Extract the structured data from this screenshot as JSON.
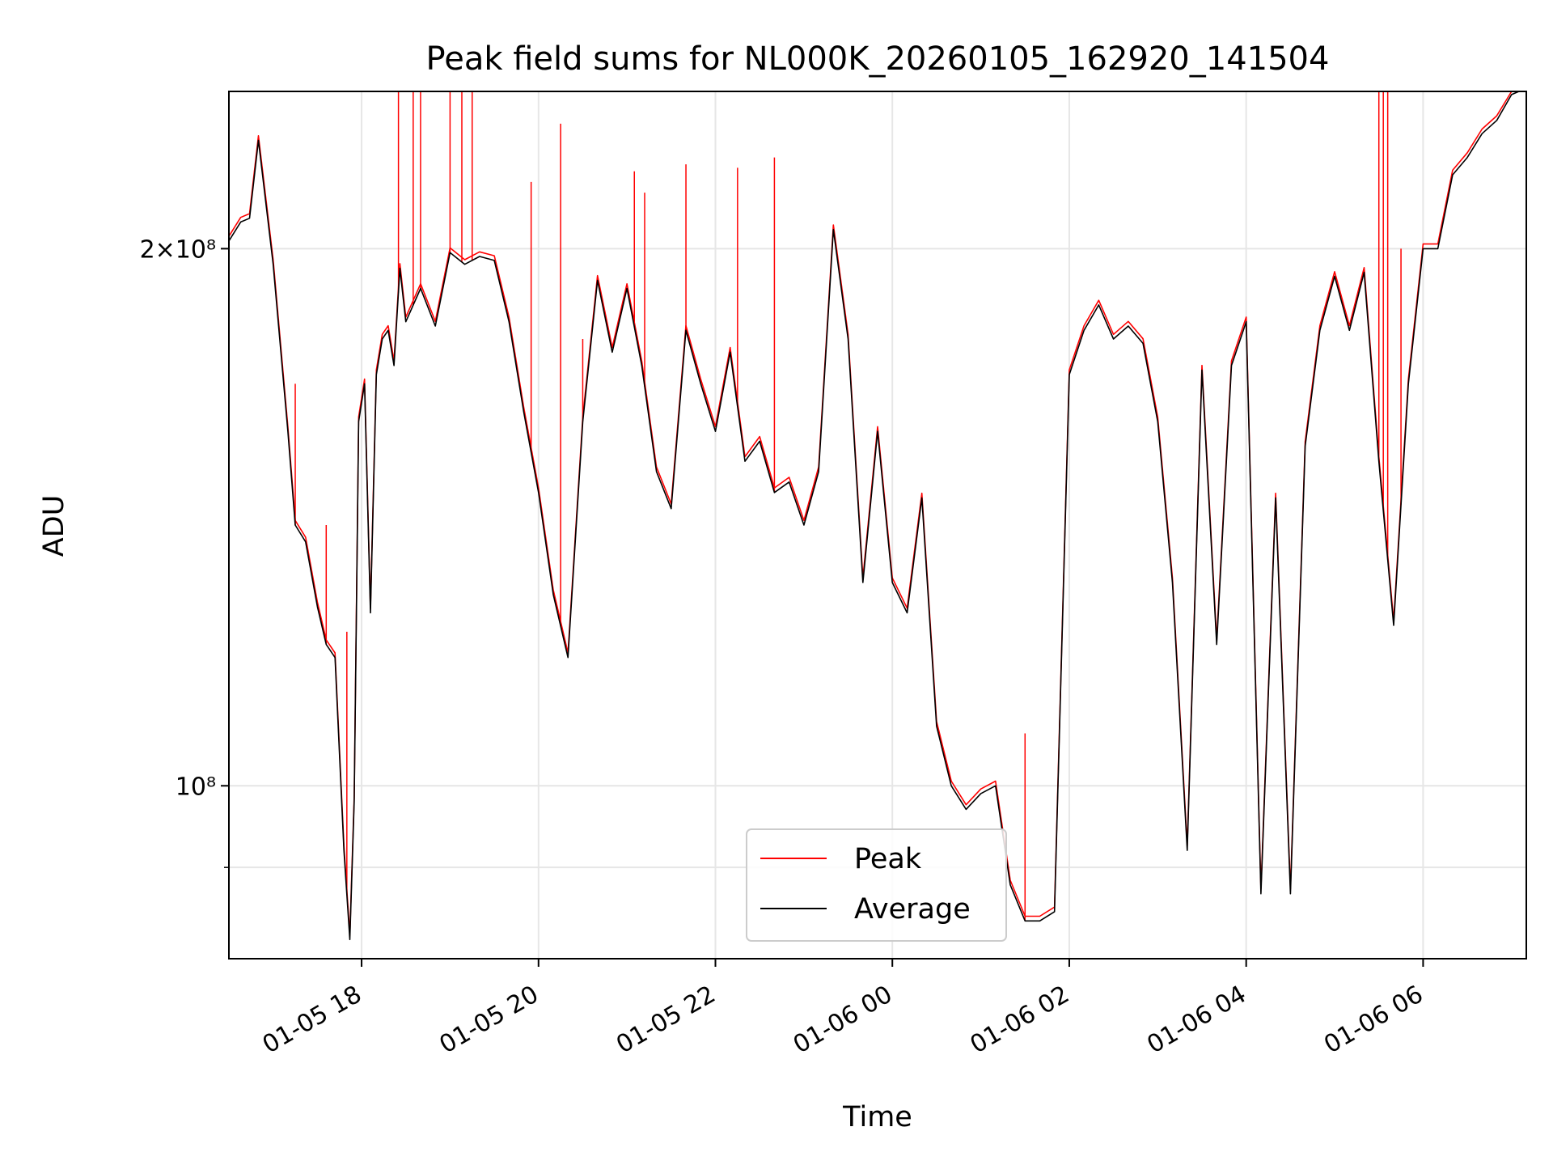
{
  "chart_data": {
    "type": "line",
    "title": "Peak field sums for NL000K_20260105_162920_141504",
    "xlabel": "Time",
    "ylabel": "ADU",
    "y_scale": "log",
    "ylim": [
      80000000,
      245000000
    ],
    "xlim": [
      "2026-01-05T16:30",
      "2026-01-06T07:10"
    ],
    "grid": true,
    "legend_position": "lower-center",
    "x_ticks": [
      {
        "t": "2026-01-05T18:00",
        "label": "01-05 18"
      },
      {
        "t": "2026-01-05T20:00",
        "label": "01-05 20"
      },
      {
        "t": "2026-01-05T22:00",
        "label": "01-05 22"
      },
      {
        "t": "2026-01-06T00:00",
        "label": "01-06 00"
      },
      {
        "t": "2026-01-06T02:00",
        "label": "01-06 02"
      },
      {
        "t": "2026-01-06T04:00",
        "label": "01-06 04"
      },
      {
        "t": "2026-01-06T06:00",
        "label": "01-06 06"
      }
    ],
    "y_ticks": [
      {
        "value": 200000000,
        "label": "2×10⁸"
      },
      {
        "value": 100000000,
        "label": "10⁸"
      }
    ],
    "y_minor_ticks": [
      90000000
    ],
    "colors": {
      "peak": "#ff0000",
      "average": "#000000"
    },
    "series": [
      {
        "name": "Average",
        "x": [
          "2026-01-05T16:30",
          "2026-01-05T16:38",
          "2026-01-05T16:44",
          "2026-01-05T16:50",
          "2026-01-05T17:00",
          "2026-01-05T17:10",
          "2026-01-05T17:15",
          "2026-01-05T17:22",
          "2026-01-05T17:30",
          "2026-01-05T17:36",
          "2026-01-05T17:42",
          "2026-01-05T17:48",
          "2026-01-05T17:52",
          "2026-01-05T17:55",
          "2026-01-05T17:58",
          "2026-01-05T18:02",
          "2026-01-05T18:06",
          "2026-01-05T18:10",
          "2026-01-05T18:14",
          "2026-01-05T18:18",
          "2026-01-05T18:22",
          "2026-01-05T18:26",
          "2026-01-05T18:30",
          "2026-01-05T18:40",
          "2026-01-05T18:50",
          "2026-01-05T19:00",
          "2026-01-05T19:10",
          "2026-01-05T19:20",
          "2026-01-05T19:30",
          "2026-01-05T19:40",
          "2026-01-05T19:50",
          "2026-01-05T20:00",
          "2026-01-05T20:10",
          "2026-01-05T20:20",
          "2026-01-05T20:30",
          "2026-01-05T20:40",
          "2026-01-05T20:50",
          "2026-01-05T21:00",
          "2026-01-05T21:10",
          "2026-01-05T21:20",
          "2026-01-05T21:30",
          "2026-01-05T21:40",
          "2026-01-05T21:50",
          "2026-01-05T22:00",
          "2026-01-05T22:10",
          "2026-01-05T22:20",
          "2026-01-05T22:30",
          "2026-01-05T22:40",
          "2026-01-05T22:50",
          "2026-01-05T23:00",
          "2026-01-05T23:10",
          "2026-01-05T23:20",
          "2026-01-05T23:30",
          "2026-01-05T23:40",
          "2026-01-05T23:50",
          "2026-01-06T00:00",
          "2026-01-06T00:10",
          "2026-01-06T00:20",
          "2026-01-06T00:30",
          "2026-01-06T00:40",
          "2026-01-06T00:50",
          "2026-01-06T01:00",
          "2026-01-06T01:10",
          "2026-01-06T01:20",
          "2026-01-06T01:30",
          "2026-01-06T01:40",
          "2026-01-06T01:50",
          "2026-01-06T02:00",
          "2026-01-06T02:10",
          "2026-01-06T02:20",
          "2026-01-06T02:30",
          "2026-01-06T02:40",
          "2026-01-06T02:50",
          "2026-01-06T03:00",
          "2026-01-06T03:10",
          "2026-01-06T03:20",
          "2026-01-06T03:30",
          "2026-01-06T03:40",
          "2026-01-06T03:50",
          "2026-01-06T04:00",
          "2026-01-06T04:10",
          "2026-01-06T04:20",
          "2026-01-06T04:30",
          "2026-01-06T04:40",
          "2026-01-06T04:50",
          "2026-01-06T05:00",
          "2026-01-06T05:10",
          "2026-01-06T05:20",
          "2026-01-06T05:30",
          "2026-01-06T05:40",
          "2026-01-06T05:50",
          "2026-01-06T06:00",
          "2026-01-06T06:10",
          "2026-01-06T06:20",
          "2026-01-06T06:30",
          "2026-01-06T06:40",
          "2026-01-06T06:50",
          "2026-01-06T07:00",
          "2026-01-06T07:05"
        ],
        "y": [
          202000000,
          207000000,
          208000000,
          230000000,
          196000000,
          158000000,
          140000000,
          137000000,
          126000000,
          120000000,
          118000000,
          92000000,
          82000000,
          98000000,
          160000000,
          168000000,
          125000000,
          170000000,
          178000000,
          180000000,
          172000000,
          195000000,
          182000000,
          190000000,
          181000000,
          199000000,
          196000000,
          198000000,
          197000000,
          182000000,
          162000000,
          146000000,
          128000000,
          118000000,
          160000000,
          192000000,
          175000000,
          190000000,
          172000000,
          150000000,
          143000000,
          180000000,
          168000000,
          158000000,
          175000000,
          152000000,
          156000000,
          146000000,
          148000000,
          140000000,
          150000000,
          205000000,
          178000000,
          130000000,
          158000000,
          130000000,
          125000000,
          145000000,
          108000000,
          100000000,
          97000000,
          99000000,
          100000000,
          88000000,
          84000000,
          84000000,
          85000000,
          170000000,
          180000000,
          186000000,
          178000000,
          181000000,
          177000000,
          160000000,
          130000000,
          92000000,
          171000000,
          120000000,
          172000000,
          182000000,
          87000000,
          145000000,
          87000000,
          155000000,
          180000000,
          193000000,
          180000000,
          194000000,
          152000000,
          123000000,
          168000000,
          200000000,
          200000000,
          220000000,
          225000000,
          232000000,
          236000000,
          244000000,
          246000000
        ]
      },
      {
        "name": "Peak",
        "x": [
          "2026-01-05T17:15",
          "2026-01-05T17:36",
          "2026-01-05T17:50",
          "2026-01-05T18:25",
          "2026-01-05T18:35",
          "2026-01-05T18:40",
          "2026-01-05T19:00",
          "2026-01-05T19:08",
          "2026-01-05T19:15",
          "2026-01-05T19:55",
          "2026-01-05T20:15",
          "2026-01-05T20:30",
          "2026-01-05T21:05",
          "2026-01-05T21:12",
          "2026-01-05T21:40",
          "2026-01-05T22:15",
          "2026-01-05T22:40",
          "2026-01-06T01:30",
          "2026-01-06T05:30",
          "2026-01-06T05:33",
          "2026-01-06T05:36",
          "2026-01-06T05:45"
        ],
        "y": [
          168000000,
          140000000,
          122000000,
          246000000,
          246000000,
          246000000,
          246000000,
          246000000,
          246000000,
          218000000,
          235000000,
          178000000,
          221000000,
          215000000,
          223000000,
          222000000,
          225000000,
          107000000,
          246000000,
          246000000,
          246000000,
          200000000
        ]
      }
    ]
  }
}
